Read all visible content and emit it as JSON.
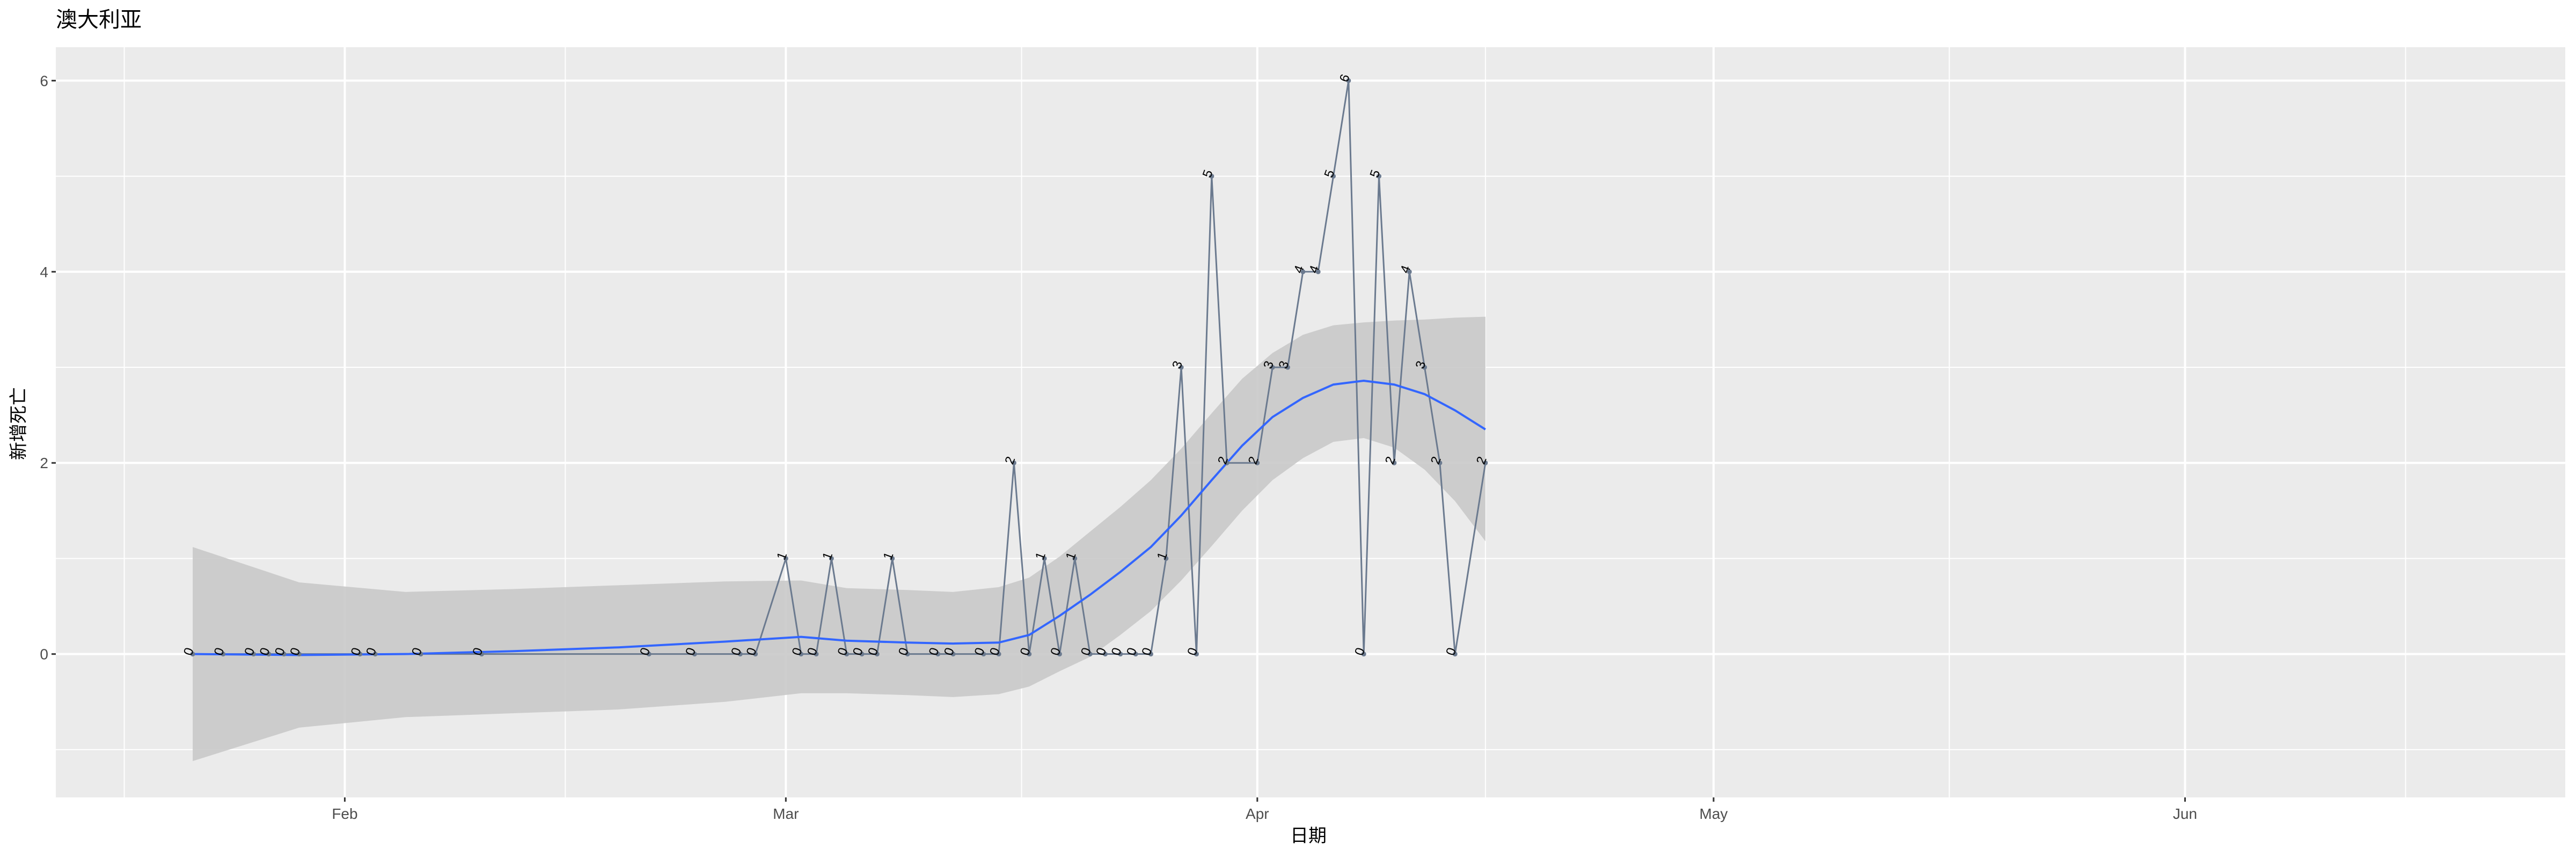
{
  "chart_data": {
    "type": "line",
    "title": "澳大利亚",
    "xlabel": "日期",
    "ylabel": "新增死亡",
    "x_ticks": [
      "Feb",
      "Mar",
      "Apr",
      "May",
      "Jun"
    ],
    "y_ticks": [
      0,
      2,
      4,
      6
    ],
    "xlim": [
      "2020-01-13",
      "2020-06-26"
    ],
    "ylim": [
      -1.5,
      6.35
    ],
    "grid": true,
    "colors": {
      "panel": "#ebebeb",
      "grid": "#ffffff",
      "series_line": "#6b7a8f",
      "smooth_line": "#3366ff",
      "ribbon": "#c9c9c9",
      "text": "#000000",
      "tick_text": "#4d4d4d"
    },
    "series": [
      {
        "points": [
          [
            "2020-01-22",
            0
          ],
          [
            "2020-01-24",
            0
          ],
          [
            "2020-01-26",
            0
          ],
          [
            "2020-01-27",
            0
          ],
          [
            "2020-01-28",
            0
          ],
          [
            "2020-01-29",
            0
          ],
          [
            "2020-02-02",
            0
          ],
          [
            "2020-02-03",
            0
          ],
          [
            "2020-02-06",
            0
          ],
          [
            "2020-02-10",
            0
          ],
          [
            "2020-02-21",
            0
          ],
          [
            "2020-02-24",
            0
          ],
          [
            "2020-02-27",
            0
          ],
          [
            "2020-02-28",
            0
          ],
          [
            "2020-03-01",
            1
          ],
          [
            "2020-03-02",
            0
          ],
          [
            "2020-03-03",
            0
          ],
          [
            "2020-03-04",
            1
          ],
          [
            "2020-03-05",
            0
          ],
          [
            "2020-03-06",
            0
          ],
          [
            "2020-03-07",
            0
          ],
          [
            "2020-03-08",
            1
          ],
          [
            "2020-03-09",
            0
          ],
          [
            "2020-03-11",
            0
          ],
          [
            "2020-03-12",
            0
          ],
          [
            "2020-03-14",
            0
          ],
          [
            "2020-03-15",
            0
          ],
          [
            "2020-03-16",
            2
          ],
          [
            "2020-03-17",
            0
          ],
          [
            "2020-03-18",
            1
          ],
          [
            "2020-03-19",
            0
          ],
          [
            "2020-03-20",
            1
          ],
          [
            "2020-03-21",
            0
          ],
          [
            "2020-03-22",
            0
          ],
          [
            "2020-03-23",
            0
          ],
          [
            "2020-03-24",
            0
          ],
          [
            "2020-03-25",
            0
          ],
          [
            "2020-03-26",
            1
          ],
          [
            "2020-03-27",
            3
          ],
          [
            "2020-03-28",
            0
          ],
          [
            "2020-03-29",
            5
          ],
          [
            "2020-03-30",
            2
          ],
          [
            "2020-04-01",
            2
          ],
          [
            "2020-04-02",
            3
          ],
          [
            "2020-04-03",
            3
          ],
          [
            "2020-04-04",
            4
          ],
          [
            "2020-04-05",
            4
          ],
          [
            "2020-04-06",
            5
          ],
          [
            "2020-04-07",
            6
          ],
          [
            "2020-04-08",
            0
          ],
          [
            "2020-04-09",
            5
          ],
          [
            "2020-04-10",
            2
          ],
          [
            "2020-04-11",
            4
          ],
          [
            "2020-04-12",
            3
          ],
          [
            "2020-04-13",
            2
          ],
          [
            "2020-04-14",
            0
          ],
          [
            "2020-04-16",
            2
          ]
        ]
      }
    ],
    "smooth": {
      "fit": [
        [
          "2020-01-22",
          0
        ],
        [
          "2020-01-29",
          -0.01
        ],
        [
          "2020-02-05",
          0.0
        ],
        [
          "2020-02-12",
          0.03
        ],
        [
          "2020-02-19",
          0.07
        ],
        [
          "2020-02-26",
          0.13
        ],
        [
          "2020-03-02",
          0.18
        ],
        [
          "2020-03-05",
          0.14
        ],
        [
          "2020-03-09",
          0.12
        ],
        [
          "2020-03-12",
          0.11
        ],
        [
          "2020-03-15",
          0.12
        ],
        [
          "2020-03-17",
          0.2
        ],
        [
          "2020-03-19",
          0.4
        ],
        [
          "2020-03-21",
          0.62
        ],
        [
          "2020-03-23",
          0.86
        ],
        [
          "2020-03-25",
          1.12
        ],
        [
          "2020-03-27",
          1.45
        ],
        [
          "2020-03-29",
          1.82
        ],
        [
          "2020-03-31",
          2.18
        ],
        [
          "2020-04-02",
          2.48
        ],
        [
          "2020-04-04",
          2.68
        ],
        [
          "2020-04-06",
          2.82
        ],
        [
          "2020-04-08",
          2.86
        ],
        [
          "2020-04-10",
          2.82
        ],
        [
          "2020-04-12",
          2.72
        ],
        [
          "2020-04-14",
          2.55
        ],
        [
          "2020-04-16",
          2.35
        ]
      ],
      "upper": [
        [
          "2020-01-22",
          1.12
        ],
        [
          "2020-01-29",
          0.75
        ],
        [
          "2020-02-05",
          0.65
        ],
        [
          "2020-02-12",
          0.68
        ],
        [
          "2020-02-19",
          0.72
        ],
        [
          "2020-02-26",
          0.76
        ],
        [
          "2020-03-02",
          0.77
        ],
        [
          "2020-03-05",
          0.69
        ],
        [
          "2020-03-09",
          0.67
        ],
        [
          "2020-03-12",
          0.65
        ],
        [
          "2020-03-15",
          0.7
        ],
        [
          "2020-03-17",
          0.8
        ],
        [
          "2020-03-19",
          1.02
        ],
        [
          "2020-03-21",
          1.28
        ],
        [
          "2020-03-23",
          1.54
        ],
        [
          "2020-03-25",
          1.82
        ],
        [
          "2020-03-27",
          2.15
        ],
        [
          "2020-03-29",
          2.52
        ],
        [
          "2020-03-31",
          2.88
        ],
        [
          "2020-04-02",
          3.15
        ],
        [
          "2020-04-04",
          3.34
        ],
        [
          "2020-04-06",
          3.44
        ],
        [
          "2020-04-08",
          3.47
        ],
        [
          "2020-04-10",
          3.49
        ],
        [
          "2020-04-12",
          3.5
        ],
        [
          "2020-04-14",
          3.52
        ],
        [
          "2020-04-16",
          3.53
        ]
      ],
      "lower": [
        [
          "2020-01-22",
          -1.12
        ],
        [
          "2020-01-29",
          -0.77
        ],
        [
          "2020-02-05",
          -0.66
        ],
        [
          "2020-02-12",
          -0.62
        ],
        [
          "2020-02-19",
          -0.58
        ],
        [
          "2020-02-26",
          -0.5
        ],
        [
          "2020-03-02",
          -0.41
        ],
        [
          "2020-03-05",
          -0.41
        ],
        [
          "2020-03-09",
          -0.43
        ],
        [
          "2020-03-12",
          -0.45
        ],
        [
          "2020-03-15",
          -0.42
        ],
        [
          "2020-03-17",
          -0.34
        ],
        [
          "2020-03-19",
          -0.18
        ],
        [
          "2020-03-21",
          -0.03
        ],
        [
          "2020-03-23",
          0.2
        ],
        [
          "2020-03-25",
          0.45
        ],
        [
          "2020-03-27",
          0.77
        ],
        [
          "2020-03-29",
          1.13
        ],
        [
          "2020-03-31",
          1.5
        ],
        [
          "2020-04-02",
          1.82
        ],
        [
          "2020-04-04",
          2.05
        ],
        [
          "2020-04-06",
          2.22
        ],
        [
          "2020-04-08",
          2.26
        ],
        [
          "2020-04-10",
          2.16
        ],
        [
          "2020-04-12",
          1.93
        ],
        [
          "2020-04-14",
          1.6
        ],
        [
          "2020-04-16",
          1.18
        ]
      ]
    }
  }
}
